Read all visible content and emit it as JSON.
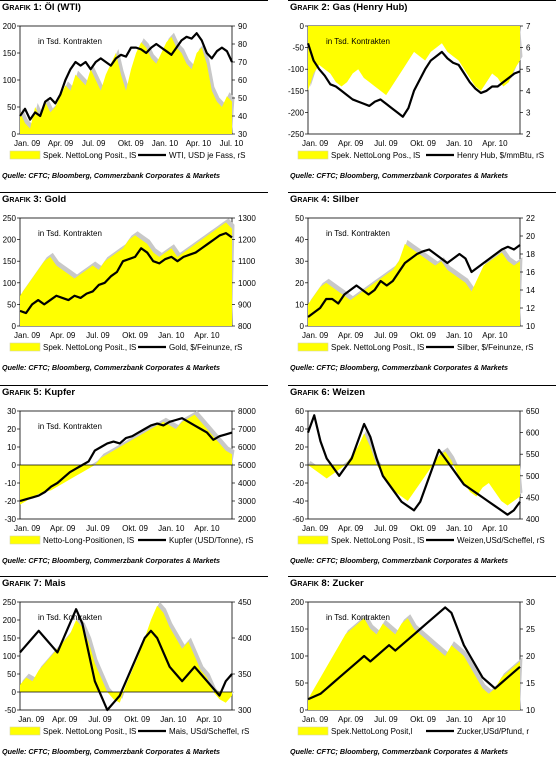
{
  "colors": {
    "area": "#ffff00",
    "area_stroke": "#d8d8a8",
    "shadow": "#c8c8c8",
    "line": "#000000"
  },
  "chart_data": [
    {
      "id": "g1",
      "type": "area+line",
      "label": "Grafik 1:",
      "title": "Öl (WTI)",
      "inner": "in Tsd. Kontrakten",
      "x_labels": [
        "Jan. 09",
        "Apr. 09",
        "Jul. 09",
        "Okt. 09",
        "Jan. 10",
        "Apr. 10",
        "Jul. 10"
      ],
      "x_label_pos": [
        0,
        0.16,
        0.32,
        0.49,
        0.65,
        0.81,
        0.97
      ],
      "y_left": {
        "min": 0,
        "max": 200,
        "ticks": [
          0,
          50,
          100,
          150,
          200
        ]
      },
      "y_right": {
        "min": 30,
        "max": 90,
        "ticks": [
          30,
          40,
          50,
          60,
          70,
          80,
          90
        ]
      },
      "legend_area": "Spek. NettoLong Posit., lS",
      "legend_line": "WTI, USD je Fass, rS",
      "area_values": [
        40,
        20,
        10,
        50,
        30,
        60,
        40,
        50,
        70,
        90,
        80,
        110,
        100,
        90,
        120,
        100,
        80,
        110,
        130,
        150,
        110,
        80,
        120,
        150,
        170,
        160,
        140,
        130,
        150,
        170,
        180,
        160,
        150,
        130,
        120,
        150,
        160,
        130,
        80,
        60,
        50,
        70,
        60
      ],
      "line_values": [
        40,
        44,
        38,
        42,
        40,
        48,
        50,
        47,
        52,
        60,
        66,
        70,
        68,
        70,
        66,
        70,
        72,
        70,
        68,
        72,
        74,
        73,
        78,
        78,
        77,
        75,
        78,
        80,
        78,
        76,
        74,
        78,
        82,
        84,
        83,
        86,
        82,
        75,
        72,
        76,
        78,
        76,
        70
      ]
    },
    {
      "id": "g2",
      "type": "area+line",
      "label": "Grafik 2:",
      "title": "Gas (Henry Hub)",
      "inner": "in Tsd. Kontrakten",
      "x_labels": [
        "Jan. 09",
        "Apr. 09",
        "Jul. 09",
        "Okt. 09",
        "Jan. 10",
        "Apr. 10"
      ],
      "x_label_pos": [
        0,
        0.17,
        0.34,
        0.51,
        0.68,
        0.85
      ],
      "y_left": {
        "min": -250,
        "max": 0,
        "ticks": [
          -250,
          -200,
          -150,
          -100,
          -50,
          0
        ]
      },
      "y_right": {
        "min": 2,
        "max": 7,
        "ticks": [
          2,
          3,
          4,
          5,
          6,
          7
        ]
      },
      "legend_area": "Spek. NettoLong Pos., lS",
      "legend_line": "Henry Hub, $/mmBtu, rS",
      "area_values": [
        -150,
        -110,
        -90,
        -100,
        -110,
        -130,
        -140,
        -130,
        -110,
        -100,
        -120,
        -130,
        -140,
        -150,
        -160,
        -140,
        -120,
        -100,
        -80,
        -60,
        -70,
        -80,
        -60,
        -50,
        -40,
        -60,
        -70,
        -80,
        -100,
        -120,
        -140,
        -150,
        -130,
        -110,
        -120,
        -140,
        -130,
        -100,
        -80
      ],
      "line_values": [
        6.2,
        5.4,
        5.0,
        4.7,
        4.3,
        4.2,
        4.0,
        3.8,
        3.6,
        3.5,
        3.4,
        3.3,
        3.5,
        3.6,
        3.4,
        3.2,
        3.0,
        2.8,
        3.2,
        4.0,
        4.5,
        5.0,
        5.4,
        5.6,
        5.8,
        5.5,
        5.3,
        5.2,
        4.8,
        4.4,
        4.1,
        3.9,
        4.0,
        4.2,
        4.2,
        4.4,
        4.6,
        4.8,
        4.9
      ]
    },
    {
      "id": "g3",
      "type": "area+line",
      "label": "Grafik 3:",
      "title": "Gold",
      "inner": "in Tsd. Kontrakten",
      "x_labels": [
        "Jan. 09",
        "Apr. 09",
        "Jul. 09",
        "Okt. 09",
        "Jan. 10",
        "Apr. 10"
      ],
      "x_label_pos": [
        0,
        0.17,
        0.34,
        0.51,
        0.68,
        0.85
      ],
      "y_left": {
        "min": 0,
        "max": 250,
        "ticks": [
          0,
          50,
          100,
          150,
          200,
          250
        ]
      },
      "y_right": {
        "min": 800,
        "max": 1300,
        "ticks": [
          800,
          900,
          1000,
          1100,
          1200,
          1300
        ]
      },
      "legend_area": "Spek. NettoLong Posit., lS",
      "legend_line": "Gold, $/Feinunze, rS",
      "area_values": [
        70,
        90,
        110,
        130,
        150,
        160,
        140,
        130,
        120,
        110,
        120,
        130,
        140,
        130,
        150,
        160,
        170,
        180,
        200,
        210,
        200,
        190,
        170,
        160,
        170,
        180,
        160,
        170,
        180,
        190,
        200,
        210,
        220,
        230,
        240,
        225
      ],
      "line_values": [
        870,
        860,
        900,
        920,
        900,
        920,
        940,
        930,
        920,
        940,
        930,
        950,
        960,
        990,
        1000,
        1030,
        1050,
        1100,
        1110,
        1120,
        1160,
        1140,
        1100,
        1090,
        1110,
        1120,
        1100,
        1120,
        1130,
        1140,
        1160,
        1180,
        1200,
        1220,
        1230,
        1210
      ]
    },
    {
      "id": "g4",
      "type": "area+line",
      "label": "Grafik 4:",
      "title": "Silber",
      "inner": "in Tsd. Kontrakten",
      "x_labels": [
        "Jan. 09",
        "Apr. 09",
        "Jul. 09",
        "Okt. 09",
        "Jan. 10",
        "Apr. 10"
      ],
      "x_label_pos": [
        0,
        0.17,
        0.34,
        0.51,
        0.68,
        0.85
      ],
      "y_left": {
        "min": 0,
        "max": 50,
        "ticks": [
          0,
          10,
          20,
          30,
          40,
          50
        ]
      },
      "y_right": {
        "min": 10,
        "max": 22,
        "ticks": [
          10,
          12,
          14,
          16,
          18,
          20,
          22
        ]
      },
      "legend_area": "Spek. NettoLong Posit., lS",
      "legend_line": "Silber, $/Feinunze, rS",
      "area_values": [
        10,
        14,
        18,
        20,
        18,
        16,
        14,
        12,
        14,
        16,
        18,
        20,
        22,
        24,
        26,
        30,
        38,
        36,
        34,
        32,
        30,
        28,
        30,
        26,
        24,
        22,
        20,
        16,
        22,
        28,
        30,
        32,
        34,
        30,
        28,
        30
      ],
      "line_values": [
        11,
        11.5,
        12,
        13,
        13,
        12.5,
        13.5,
        14,
        14.5,
        14,
        13.5,
        14,
        15,
        14.5,
        15,
        16,
        17,
        17.5,
        18,
        18.3,
        18.5,
        18,
        17.5,
        17,
        17.5,
        18,
        17.5,
        16,
        16.5,
        17,
        17.5,
        18,
        18.5,
        18.8,
        18.5,
        19
      ]
    },
    {
      "id": "g5",
      "type": "area+line",
      "label": "Grafik 5:",
      "title": "Kupfer",
      "inner": "in Tsd. Kontrakten",
      "x_labels": [
        "Jan. 09",
        "Apr. 09",
        "Jul. 09",
        "Okt. 09",
        "Jan. 10",
        "Apr. 10"
      ],
      "x_label_pos": [
        0,
        0.17,
        0.34,
        0.51,
        0.68,
        0.85
      ],
      "y_left": {
        "min": -30,
        "max": 30,
        "ticks": [
          -30,
          -20,
          -10,
          0,
          10,
          20,
          30
        ]
      },
      "y_right": {
        "min": 2000,
        "max": 8000,
        "ticks": [
          2000,
          3000,
          4000,
          5000,
          6000,
          7000,
          8000
        ]
      },
      "legend_area": "Netto-Long-Positionen, lS",
      "legend_line": "Kupfer (USD/Tonne), rS",
      "area_values": [
        -22,
        -20,
        -18,
        -16,
        -15,
        -14,
        -12,
        -10,
        -8,
        -6,
        -4,
        -2,
        0,
        4,
        6,
        8,
        10,
        12,
        14,
        16,
        18,
        20,
        22,
        24,
        22,
        20,
        24,
        26,
        28,
        24,
        20,
        16,
        12,
        8,
        6
      ],
      "line_values": [
        3000,
        3100,
        3200,
        3300,
        3500,
        3800,
        4000,
        4300,
        4600,
        4800,
        5000,
        5200,
        5800,
        6000,
        6200,
        6300,
        6200,
        6500,
        6600,
        6800,
        7000,
        7200,
        7300,
        7200,
        7400,
        7500,
        7600,
        7400,
        7200,
        7000,
        6800,
        6400,
        6600,
        6700,
        6800
      ]
    },
    {
      "id": "g6",
      "type": "area+line",
      "label": "Grafik 6:",
      "title": "Weizen",
      "inner": "",
      "x_labels": [
        "Jan. 09",
        "Apr. 09",
        "Jul. 09",
        "Okt. 09",
        "Jan. 10",
        "Apr. 10"
      ],
      "x_label_pos": [
        0,
        0.17,
        0.34,
        0.51,
        0.68,
        0.85
      ],
      "y_left": {
        "min": -60,
        "max": 60,
        "ticks": [
          -60,
          -40,
          -20,
          0,
          20,
          40,
          60
        ]
      },
      "y_right": {
        "min": 400,
        "max": 650,
        "ticks": [
          400,
          450,
          500,
          550,
          600,
          650
        ]
      },
      "legend_area": "Spek. NettoLong Posit., lS",
      "legend_line": "Weizen,USd/Scheffel, rS",
      "area_values": [
        0,
        -5,
        -10,
        -15,
        -10,
        -5,
        0,
        10,
        20,
        35,
        20,
        0,
        -10,
        -20,
        -30,
        -35,
        -40,
        -30,
        -20,
        -10,
        0,
        10,
        15,
        5,
        -10,
        -20,
        -30,
        -35,
        -25,
        -20,
        -30,
        -40,
        -45,
        -40,
        -35
      ],
      "line_values": [
        600,
        640,
        580,
        540,
        520,
        500,
        520,
        540,
        580,
        620,
        590,
        540,
        500,
        480,
        460,
        440,
        430,
        420,
        440,
        480,
        520,
        560,
        540,
        520,
        500,
        480,
        470,
        460,
        450,
        440,
        430,
        420,
        410,
        420,
        440
      ]
    },
    {
      "id": "g7",
      "type": "area+line",
      "label": "Grafik 7:",
      "title": "Mais",
      "inner": "in Tsd. Kontrakten",
      "x_labels": [
        "Jan. 09",
        "Apr. 09",
        "Jul. 09",
        "Okt. 09",
        "Jan. 10",
        "Apr. 10"
      ],
      "x_label_pos": [
        0.02,
        0.18,
        0.35,
        0.52,
        0.69,
        0.86
      ],
      "y_left": {
        "min": -50,
        "max": 250,
        "ticks": [
          -50,
          0,
          50,
          100,
          150,
          200,
          250
        ]
      },
      "y_right": {
        "min": 300,
        "max": 450,
        "ticks": [
          300,
          350,
          400,
          450
        ]
      },
      "legend_area": "Spek. NettoLong Posit., lS",
      "legend_line": "Mais, USd/Scheffel, rS",
      "area_values": [
        20,
        40,
        30,
        60,
        80,
        100,
        120,
        140,
        160,
        200,
        180,
        140,
        80,
        40,
        0,
        -20,
        -30,
        20,
        60,
        100,
        150,
        200,
        240,
        220,
        180,
        150,
        120,
        140,
        100,
        60,
        40,
        0,
        -20,
        -30,
        -10
      ],
      "line_values": [
        380,
        390,
        400,
        410,
        400,
        390,
        380,
        400,
        420,
        440,
        420,
        380,
        340,
        320,
        300,
        310,
        320,
        340,
        360,
        380,
        400,
        410,
        400,
        380,
        360,
        350,
        340,
        350,
        360,
        350,
        340,
        330,
        320,
        340,
        350
      ]
    },
    {
      "id": "g8",
      "type": "area+line",
      "label": "Grafik 8:",
      "title": "Zucker",
      "inner": "in Tsd. Kontrakten",
      "x_labels": [
        "Jan. 09",
        "Apr. 09",
        "Jul. 09",
        "Okt. 09",
        "Jan. 10",
        "Apr 10"
      ],
      "x_label_pos": [
        0,
        0.17,
        0.34,
        0.51,
        0.68,
        0.85
      ],
      "y_left": {
        "min": 0,
        "max": 200,
        "ticks": [
          0,
          50,
          100,
          150,
          200
        ]
      },
      "y_right": {
        "min": 10,
        "max": 30,
        "ticks": [
          10,
          15,
          20,
          25,
          30
        ]
      },
      "legend_area": "Spek.NettoLong Posit,l",
      "legend_line": "Zucker,USd/Pfund, r",
      "area_values": [
        20,
        40,
        60,
        80,
        100,
        120,
        140,
        150,
        160,
        170,
        150,
        140,
        160,
        150,
        140,
        160,
        170,
        150,
        140,
        130,
        120,
        110,
        100,
        120,
        110,
        100,
        80,
        60,
        40,
        30,
        40,
        60,
        70,
        80,
        90
      ],
      "line_values": [
        12,
        12.5,
        13,
        14,
        15,
        16,
        17,
        18,
        19,
        20,
        19,
        20,
        21,
        22,
        21,
        22,
        23,
        24,
        25,
        26,
        27,
        28,
        29,
        28,
        25,
        22,
        20,
        18,
        16,
        15,
        14,
        15,
        16,
        17,
        18
      ]
    }
  ],
  "source_text": "Quelle: CFTC; Bloomberg, Commerzbank Corporates & Markets"
}
